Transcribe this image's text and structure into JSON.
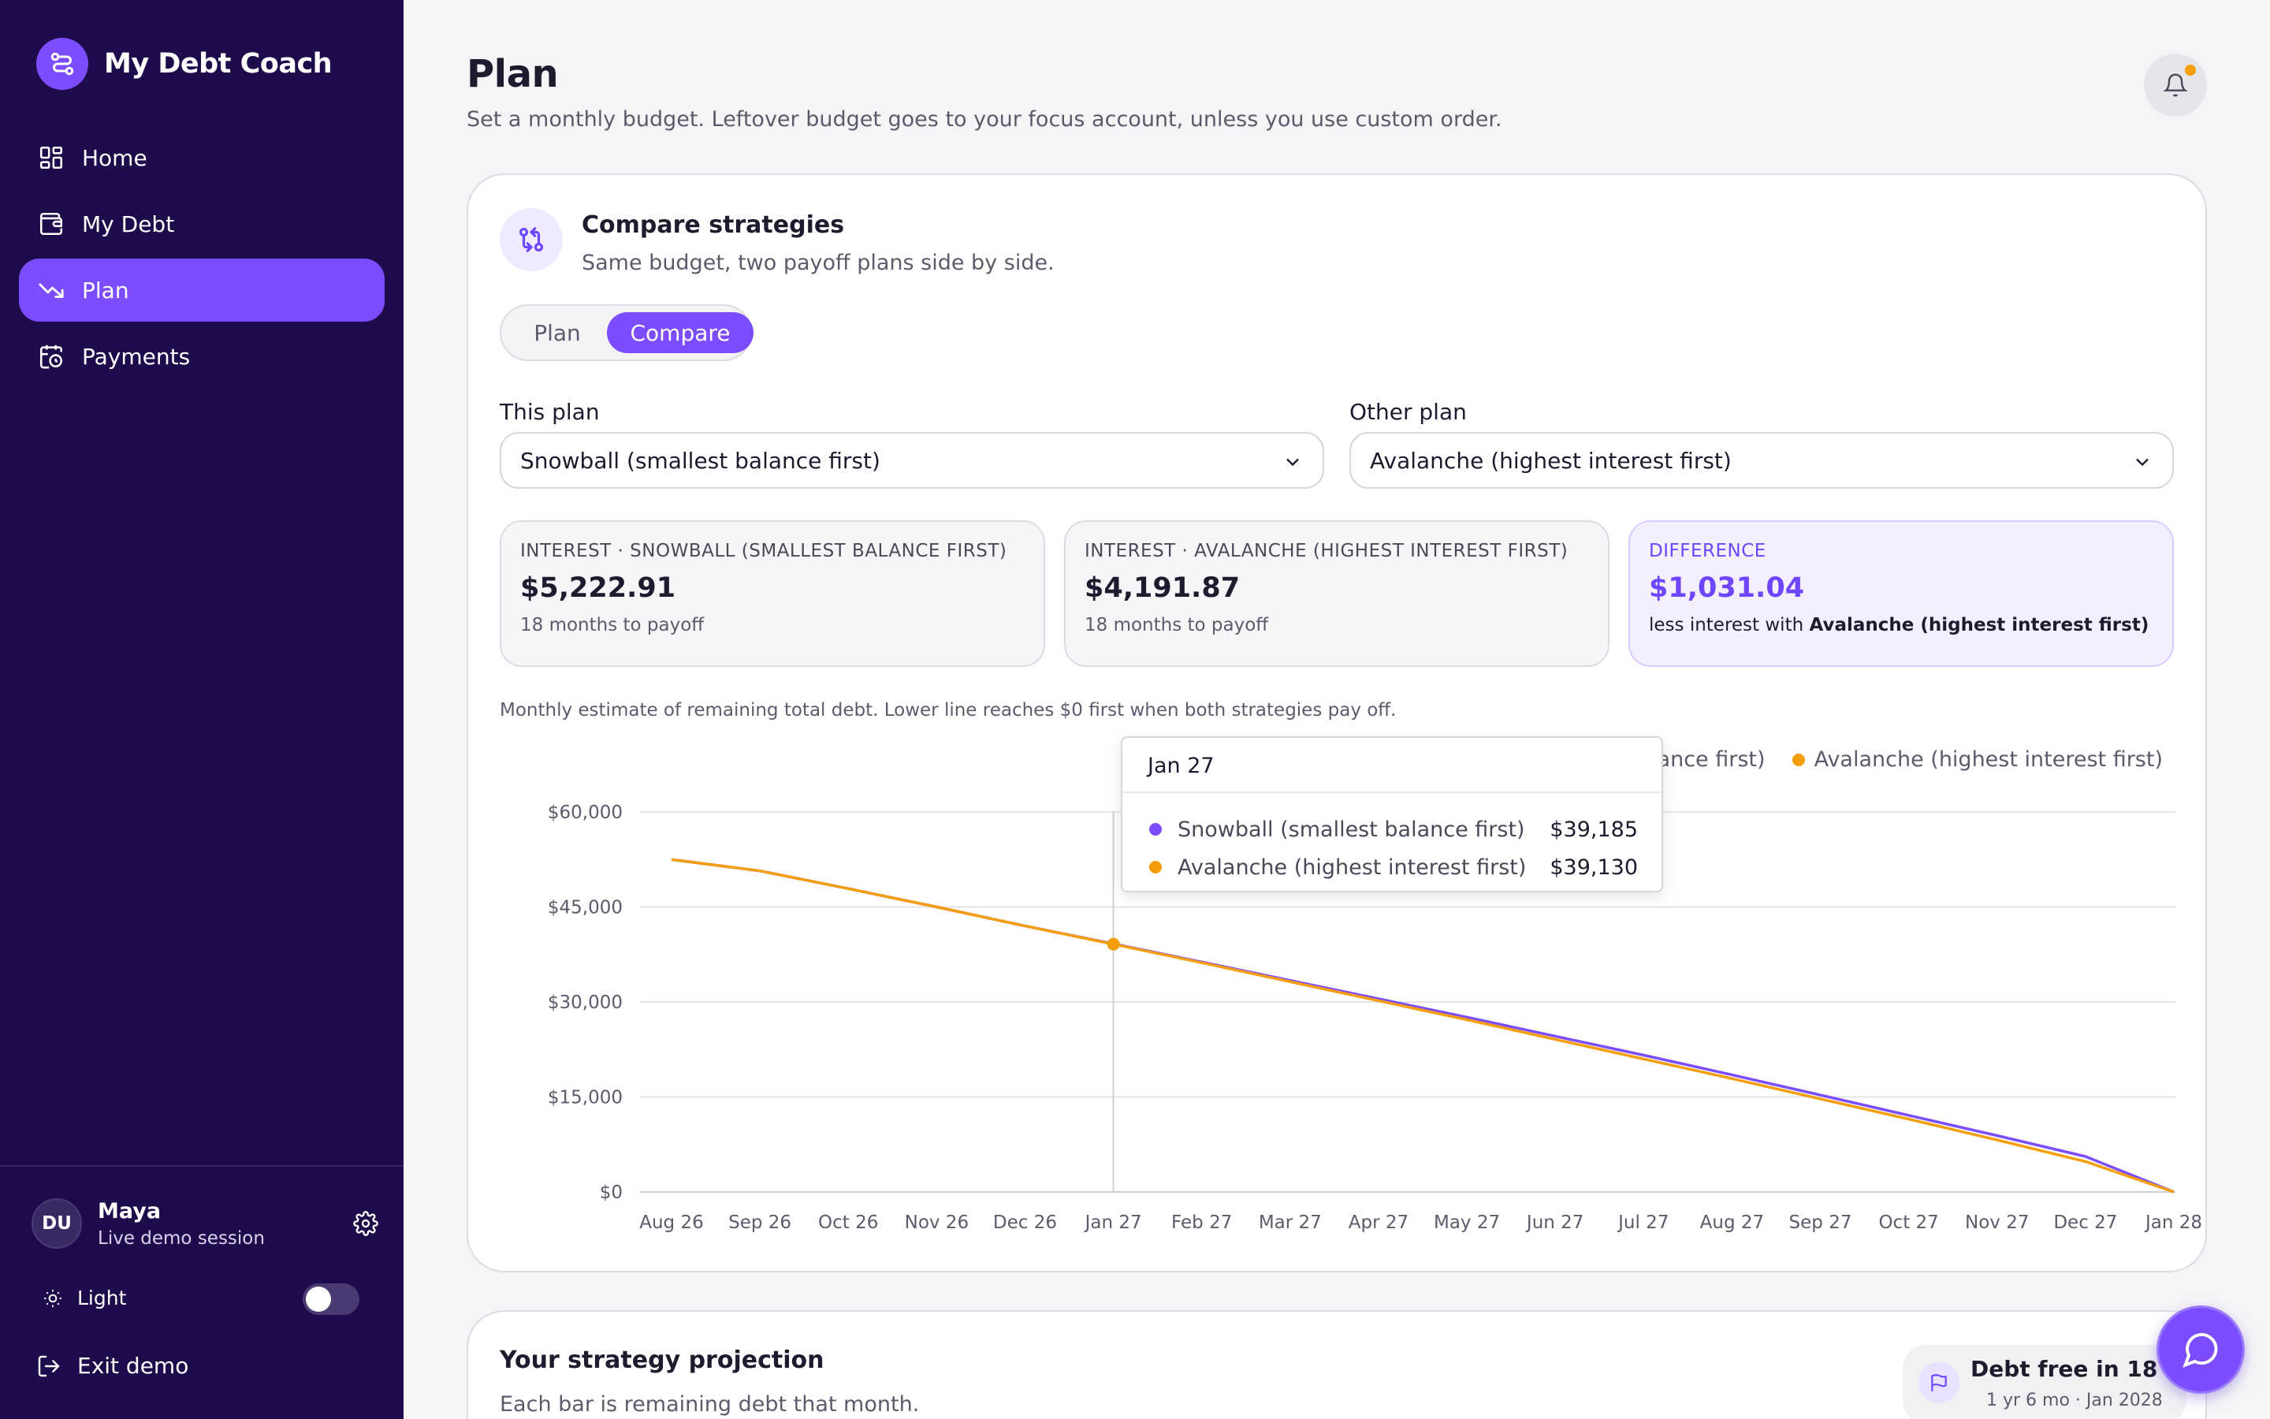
{
  "app": {
    "name": "My Debt Coach"
  },
  "sidebar": {
    "items": [
      {
        "label": "Home",
        "icon": "grid-icon"
      },
      {
        "label": "My Debt",
        "icon": "wallet-icon"
      },
      {
        "label": "Plan",
        "icon": "trending-down-icon",
        "active": true
      },
      {
        "label": "Payments",
        "icon": "calendar-clock-icon"
      }
    ],
    "user": {
      "initials": "DU",
      "name": "Maya",
      "subtitle": "Live demo session"
    },
    "theme_label": "Light",
    "exit_label": "Exit demo"
  },
  "header": {
    "title": "Plan",
    "subtitle": "Set a monthly budget. Leftover budget goes to your focus account, unless you use custom order."
  },
  "compare": {
    "title": "Compare strategies",
    "subtitle": "Same budget, two payoff plans side by side.",
    "toggle": {
      "plan": "Plan",
      "compare": "Compare",
      "selected": "Compare"
    },
    "this_plan_label": "This plan",
    "this_plan_value": "Snowball (smallest balance first)",
    "other_plan_label": "Other plan",
    "other_plan_value": "Avalanche (highest interest first)",
    "stats": {
      "snowball": {
        "label": "INTEREST · SNOWBALL (SMALLEST BALANCE FIRST)",
        "value": "$5,222.91",
        "sub": "18 months to payoff"
      },
      "avalanche": {
        "label": "INTEREST · AVALANCHE (HIGHEST INTEREST FIRST)",
        "value": "$4,191.87",
        "sub": "18 months to payoff"
      },
      "difference": {
        "label": "DIFFERENCE",
        "value": "$1,031.04",
        "sub_prefix": "less interest with ",
        "sub_bold": "Avalanche (highest interest first)"
      }
    },
    "chart_note": "Monthly estimate of remaining total debt. Lower line reaches $0 first when both strategies pay off.",
    "tooltip": {
      "title": "Jan 27",
      "rows": [
        {
          "name": "Snowball (smallest balance first)",
          "value": "$39,185",
          "color": "#7c4dff"
        },
        {
          "name": "Avalanche (highest interest first)",
          "value": "$39,130",
          "color": "#f59e0b"
        }
      ]
    }
  },
  "chart_data": {
    "type": "line",
    "x": [
      "Aug 26",
      "Sep 26",
      "Oct 26",
      "Nov 26",
      "Dec 26",
      "Jan 27",
      "Feb 27",
      "Mar 27",
      "Apr 27",
      "May 27",
      "Jun 27",
      "Jul 27",
      "Aug 27",
      "Sep 27",
      "Oct 27",
      "Nov 27",
      "Dec 27",
      "Jan 28"
    ],
    "yticks": [
      "$0",
      "$15,000",
      "$30,000",
      "$45,000",
      "$60,000"
    ],
    "ylim": [
      0,
      60000
    ],
    "grid": true,
    "legend_position": "top-right",
    "series": [
      {
        "name": "Snowball (smallest balance first)",
        "color": "#7c4dff",
        "values": [
          52500,
          50700,
          47900,
          45000,
          42000,
          39185,
          36300,
          33400,
          30500,
          27600,
          24600,
          21600,
          18500,
          15300,
          12100,
          8900,
          5600,
          0
        ]
      },
      {
        "name": "Avalanche (highest interest first)",
        "color": "#f59e0b",
        "values": [
          52500,
          50700,
          47900,
          45000,
          42000,
          39130,
          36200,
          33200,
          30200,
          27200,
          24100,
          21000,
          17900,
          14700,
          11500,
          8200,
          4800,
          0
        ]
      }
    ],
    "highlight_index": 5
  },
  "projection": {
    "title": "Your strategy projection",
    "subtitle": "Each bar is remaining debt that month.",
    "badge_title": "Debt free in 18 mo",
    "badge_sub": "1 yr 6 mo · Jan 2028"
  }
}
